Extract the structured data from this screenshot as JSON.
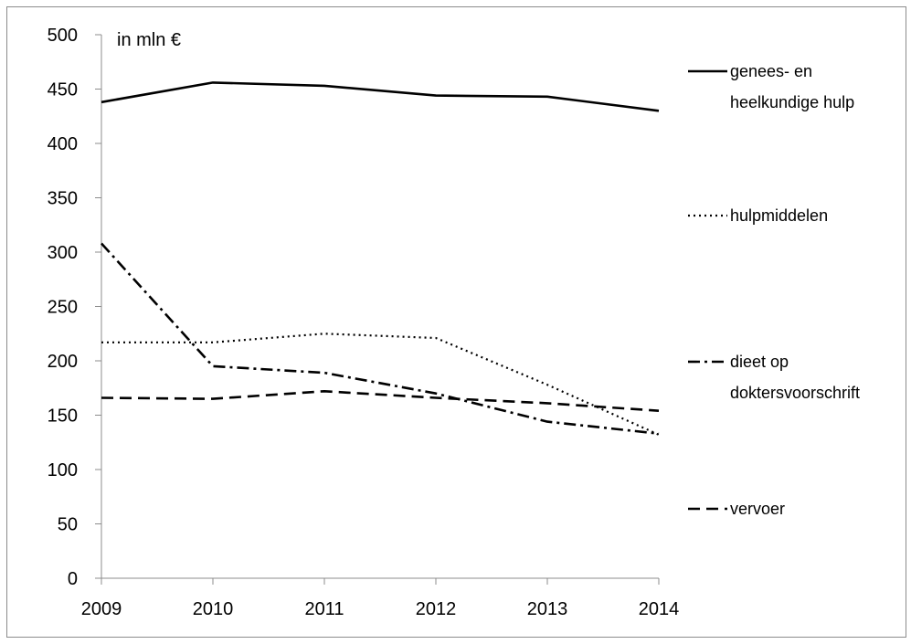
{
  "chart_data": {
    "type": "line",
    "unit_label": "in mln €",
    "x": [
      "2009",
      "2010",
      "2011",
      "2012",
      "2013",
      "2014"
    ],
    "ylim": [
      0,
      500
    ],
    "yticks": [
      "0",
      "50",
      "100",
      "150",
      "200",
      "250",
      "300",
      "350",
      "400",
      "450",
      "500"
    ],
    "grid": false,
    "legend_position": "right",
    "series": [
      {
        "name": "genees- en heelkundige hulp",
        "name_lines": [
          "genees- en",
          "heelkundige hulp"
        ],
        "style": "solid",
        "values": [
          438,
          456,
          453,
          444,
          443,
          430
        ]
      },
      {
        "name": "hulpmiddelen",
        "name_lines": [
          "hulpmiddelen"
        ],
        "style": "dotted",
        "values": [
          217,
          217,
          225,
          221,
          178,
          132
        ]
      },
      {
        "name": "dieet op doktersvoorschrift",
        "name_lines": [
          "dieet op",
          "doktersvoorschrift"
        ],
        "style": "dashdot",
        "values": [
          308,
          195,
          189,
          170,
          144,
          133
        ]
      },
      {
        "name": "vervoer",
        "name_lines": [
          "vervoer"
        ],
        "style": "dashed",
        "values": [
          166,
          165,
          172,
          166,
          161,
          154
        ]
      }
    ],
    "colors": {
      "line": "#000000",
      "axis": "#8c8c8c"
    }
  }
}
